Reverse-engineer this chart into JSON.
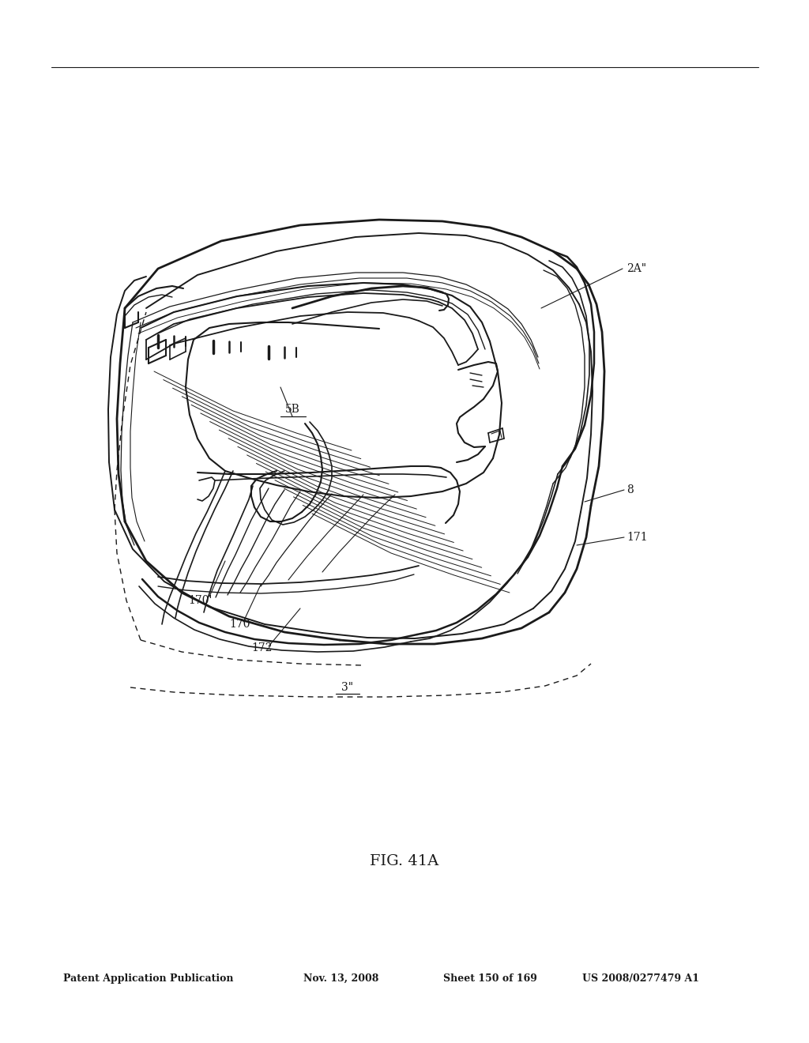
{
  "header_text": "Patent Application Publication",
  "header_date": "Nov. 13, 2008",
  "header_sheet": "Sheet 150 of 169",
  "header_patent": "US 2008/0277479 A1",
  "figure_label": "FIG. 41A",
  "bg_color": "#ffffff",
  "line_color": "#1a1a1a",
  "fig_width": 10.24,
  "fig_height": 13.2,
  "dpi": 100
}
